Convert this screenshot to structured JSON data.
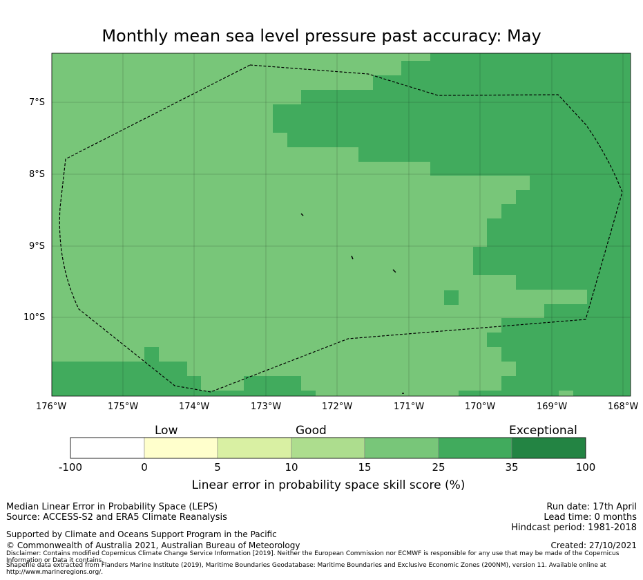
{
  "title": "Monthly mean sea level pressure past accuracy: May",
  "map": {
    "lon_range": [
      -176,
      -168
    ],
    "lat_range": [
      -11.1,
      -6.3
    ],
    "lon_ticks": [
      "176°W",
      "175°W",
      "174°W",
      "173°W",
      "172°W",
      "171°W",
      "170°W",
      "169°W",
      "168°W"
    ],
    "lat_ticks": [
      "7°S",
      "8°S",
      "9°S",
      "10°S"
    ],
    "colors": {
      "band_15_25": "#78c679",
      "band_25_35": "#41ab5d",
      "eez_boundary": "#000000"
    }
  },
  "colorbar": {
    "category_labels": [
      "Low",
      "Good",
      "Exceptional"
    ],
    "tick_labels": [
      "-100",
      "0",
      "5",
      "10",
      "15",
      "25",
      "35",
      "100"
    ],
    "colors": [
      "#ffffff",
      "#ffffcc",
      "#d9f0a3",
      "#addd8e",
      "#78c679",
      "#41ab5d",
      "#238443"
    ],
    "label": "Linear error in probability space skill score (%)"
  },
  "footer": {
    "left_line1": "Median Linear Error in Probability Space (LEPS)",
    "left_line2": "Source: ACCESS-S2 and ERA5 Climate Reanalysis",
    "support": "Supported by Climate and Oceans Support Program in the Pacific",
    "copyright": "© Commonwealth of Australia 2021, Australian Bureau of Meteorology",
    "run_date": "Run date: 17th April",
    "lead_time": "Lead time: 0 months",
    "hindcast": "Hindcast period: 1981-2018",
    "created": "Created: 27/10/2021",
    "disclaimer": "Disclaimer: Contains modified Copernicus Climate Change Service Information [2019]. Neither the European Commission nor ECMWF is responsible for any use that may be made of the Copernicus Information or Data it contains.",
    "shapefile": "Shapefile data extracted from Flanders Marine Institute (2019), Maritime Boundaries Geodatabase: Maritime Boundaries and Exclusive Economic Zones (200NM), version 11. Available online at http://www.marineregions.org/."
  }
}
